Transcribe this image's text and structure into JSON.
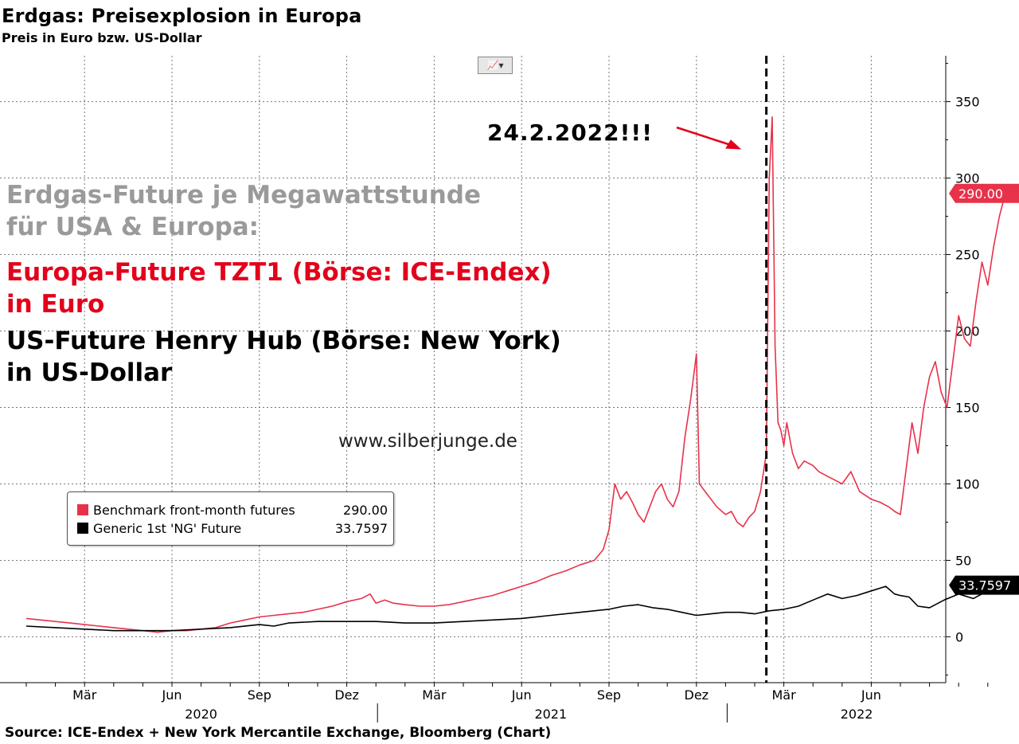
{
  "header": {
    "title": "Erdgas: Preisexplosion in Europa",
    "subtitle": "Preis in Euro bzw. US-Dollar"
  },
  "annotations": {
    "gray_line1": "Erdgas-Future je Megawattstunde",
    "gray_line2": "für USA & Europa:",
    "red_line1": "Europa-Future TZT1 (Börse: ICE-Endex)",
    "red_line2": "in Euro",
    "black_line1": "US-Future Henry Hub (Börse: New York)",
    "black_line2": "in US-Dollar",
    "date_marker": "24.2.2022!!!",
    "watermark": "www.silberjunge.de"
  },
  "chart_tool": {
    "icon": "line-chart-icon"
  },
  "source": "Source: ICE-Endex + New York Mercantile Exchange, Bloomberg (Chart)",
  "chart_data": {
    "type": "line",
    "ylim": [
      -30,
      380
    ],
    "y_ticks": [
      0,
      50,
      100,
      150,
      200,
      250,
      300,
      350
    ],
    "y_tick_labels": [
      "0",
      "50",
      "100",
      "150",
      "200",
      "250",
      "300",
      "350"
    ],
    "x_range": [
      0,
      33.75
    ],
    "x_month_ticks": [
      {
        "label": "Mär",
        "x": 2
      },
      {
        "label": "Jun",
        "x": 5
      },
      {
        "label": "Sep",
        "x": 8
      },
      {
        "label": "Dez",
        "x": 11
      },
      {
        "label": "Mär",
        "x": 14
      },
      {
        "label": "Jun",
        "x": 17
      },
      {
        "label": "Sep",
        "x": 20
      },
      {
        "label": "Dez",
        "x": 23
      },
      {
        "label": "Mär",
        "x": 26
      },
      {
        "label": "Jun",
        "x": 29
      }
    ],
    "x_year_labels": [
      {
        "label": "2020",
        "x": 6
      },
      {
        "label": "2021",
        "x": 18
      },
      {
        "label": "2022",
        "x": 28.5
      }
    ],
    "year_separators": [
      12,
      24
    ],
    "event_line": {
      "x": 25.4,
      "style": "dashed"
    },
    "grid": true,
    "legend_position": "bottom-left",
    "series": [
      {
        "name": "Benchmark front-month futures",
        "legend_value": "290.00",
        "last_label": "290.00",
        "color": "#e8324a",
        "x": [
          0,
          0.5,
          1,
          1.5,
          2,
          2.5,
          3,
          3.5,
          4,
          4.5,
          5,
          5.5,
          6,
          6.5,
          7,
          7.5,
          8,
          8.5,
          9,
          9.5,
          10,
          10.5,
          11,
          11.5,
          11.8,
          12,
          12.3,
          12.6,
          13,
          13.5,
          14,
          14.5,
          15,
          15.5,
          16,
          16.5,
          17,
          17.5,
          18,
          18.5,
          19,
          19.5,
          19.8,
          20,
          20.2,
          20.4,
          20.6,
          20.8,
          21,
          21.2,
          21.4,
          21.6,
          21.8,
          22,
          22.2,
          22.4,
          22.6,
          22.8,
          23,
          23.1,
          23.3,
          23.5,
          23.7,
          24,
          24.2,
          24.4,
          24.6,
          24.8,
          25,
          25.2,
          25.4,
          25.5,
          25.6,
          25.7,
          25.8,
          25.9,
          26,
          26.1,
          26.2,
          26.3,
          26.5,
          26.7,
          27,
          27.2,
          27.5,
          27.8,
          28,
          28.3,
          28.6,
          29,
          29.3,
          29.6,
          29.8,
          30,
          30.2,
          30.4,
          30.6,
          30.8,
          31,
          31.2,
          31.4,
          31.6,
          31.8,
          32,
          32.2,
          32.4,
          32.6,
          32.8,
          33,
          33.2,
          33.4,
          33.6,
          33.75
        ],
        "y": [
          12,
          11,
          10,
          9,
          8,
          7,
          6,
          5,
          4,
          3,
          4,
          4,
          5,
          6,
          9,
          11,
          13,
          14,
          15,
          16,
          18,
          20,
          23,
          25,
          28,
          22,
          24,
          22,
          21,
          20,
          20,
          21,
          23,
          25,
          27,
          30,
          33,
          36,
          40,
          43,
          47,
          50,
          57,
          70,
          100,
          90,
          95,
          88,
          80,
          75,
          85,
          95,
          100,
          90,
          85,
          95,
          130,
          155,
          185,
          100,
          95,
          90,
          85,
          80,
          82,
          75,
          72,
          78,
          82,
          95,
          120,
          300,
          340,
          190,
          140,
          135,
          125,
          140,
          130,
          120,
          110,
          115,
          112,
          108,
          105,
          102,
          100,
          108,
          95,
          90,
          88,
          85,
          82,
          80,
          110,
          140,
          120,
          150,
          170,
          180,
          160,
          150,
          180,
          210,
          195,
          190,
          220,
          245,
          230,
          255,
          275,
          290,
          290
        ]
      },
      {
        "name": "Generic 1st 'NG' Future",
        "legend_value": "33.7597",
        "last_label": "33.7597",
        "color": "#000000",
        "x": [
          0,
          1,
          2,
          3,
          4,
          5,
          6,
          7,
          8,
          8.5,
          9,
          10,
          11,
          12,
          13,
          14,
          15,
          16,
          17,
          18,
          19,
          20,
          20.5,
          21,
          21.5,
          22,
          22.5,
          23,
          23.5,
          24,
          24.5,
          25,
          25.5,
          26,
          26.5,
          27,
          27.5,
          28,
          28.5,
          29,
          29.5,
          29.8,
          30,
          30.3,
          30.6,
          31,
          31.5,
          32,
          32.5,
          33,
          33.5,
          33.75
        ],
        "y": [
          7,
          6,
          5,
          4,
          4,
          4,
          5,
          6,
          8,
          7,
          9,
          10,
          10,
          10,
          9,
          9,
          10,
          11,
          12,
          14,
          16,
          18,
          20,
          21,
          19,
          18,
          16,
          14,
          15,
          16,
          16,
          15,
          17,
          18,
          20,
          24,
          28,
          25,
          27,
          30,
          33,
          28,
          27,
          26,
          20,
          19,
          24,
          28,
          25,
          30,
          32,
          33.76
        ]
      }
    ]
  }
}
